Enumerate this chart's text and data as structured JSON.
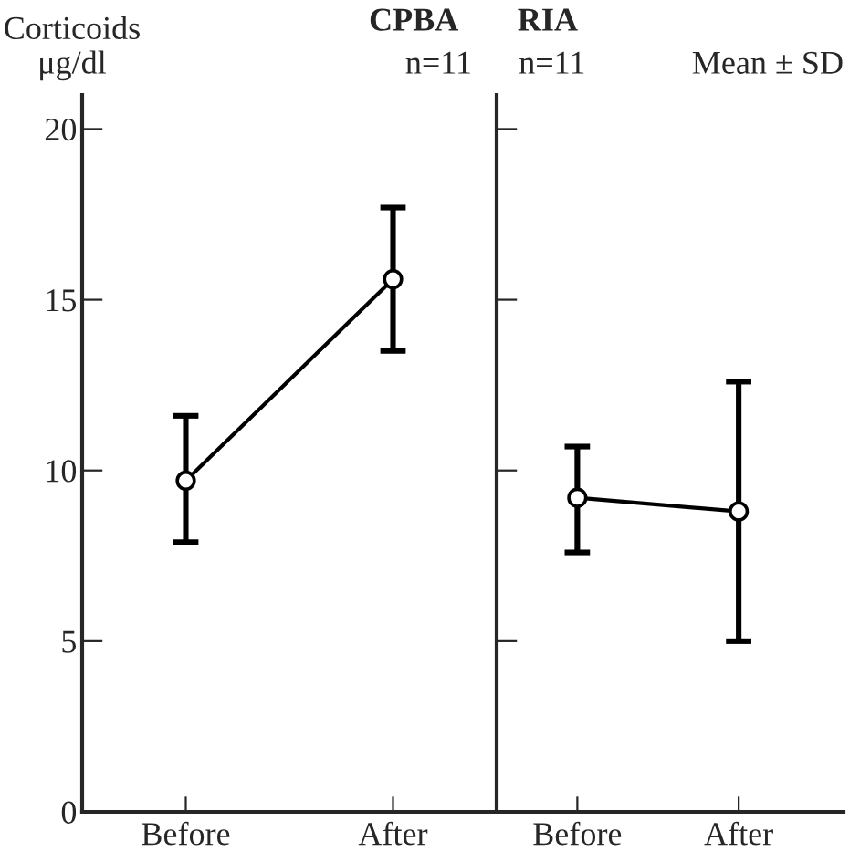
{
  "chart_data": [
    {
      "type": "line",
      "title": "CPBA",
      "subtitle": "n=11",
      "ylabel": "Corticoids\nμg/dl",
      "categories": [
        "Before",
        "After"
      ],
      "series": [
        {
          "color": "#000000",
          "values": [
            9.7,
            15.6
          ],
          "errors": [
            [
              7.9,
              11.6
            ],
            [
              13.5,
              17.7
            ]
          ]
        }
      ],
      "ylim": [
        0,
        21
      ],
      "yticks": [
        0,
        5,
        10,
        15,
        20
      ],
      "marker": "circle",
      "line_style": "solid",
      "grid": false,
      "legend": false
    },
    {
      "type": "line",
      "title": "RIA",
      "subtitle": "n=11",
      "annotations": [
        "Mean ± SD"
      ],
      "categories": [
        "Before",
        "After"
      ],
      "series": [
        {
          "color": "#000000",
          "values": [
            9.2,
            8.8
          ],
          "errors": [
            [
              7.6,
              10.7
            ],
            [
              5.0,
              12.6
            ]
          ]
        }
      ],
      "ylim": [
        0,
        21
      ],
      "yticks": [
        0,
        5,
        10,
        15,
        20
      ],
      "tick_labels": "x",
      "marker": "circle",
      "line_style": "solid",
      "grid": false,
      "legend": false
    }
  ]
}
